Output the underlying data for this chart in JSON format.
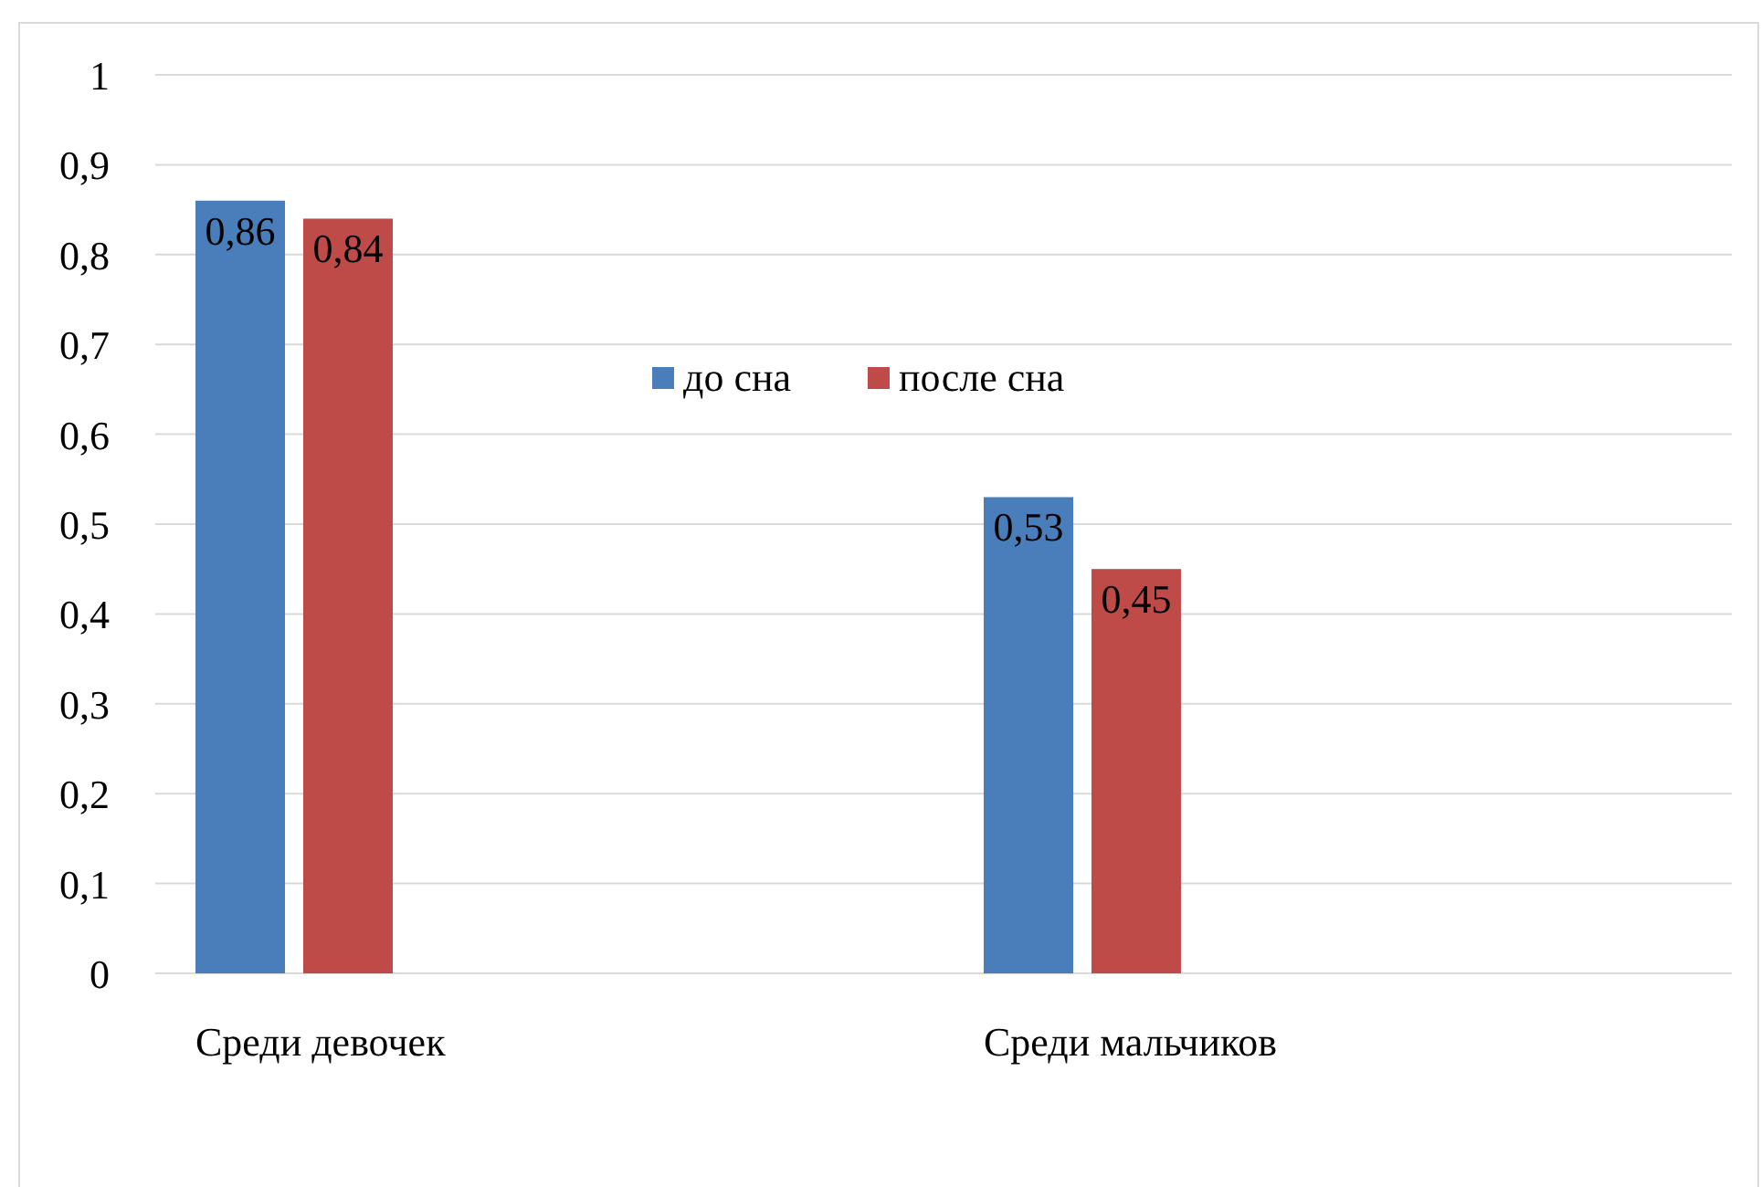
{
  "chart_data": {
    "type": "bar",
    "categories": [
      "Среди девочек",
      "Среди мальчиков"
    ],
    "series": [
      {
        "name": "до сна",
        "color": "#4a7ebb",
        "values": [
          0.86,
          0.53
        ],
        "value_labels": [
          "0,86",
          "0,53"
        ]
      },
      {
        "name": "после сна",
        "color": "#be4b48",
        "values": [
          0.84,
          0.45
        ],
        "value_labels": [
          "0,84",
          "0,45"
        ]
      }
    ],
    "ylim": [
      0,
      1
    ],
    "yticks": [
      0,
      {
        "value": 0.1,
        "label": "0,1"
      },
      {
        "value": 0.2,
        "label": "0,2"
      },
      {
        "value": 0.3,
        "label": "0,3"
      },
      {
        "value": 0.4,
        "label": "0,4"
      },
      {
        "value": 0.5,
        "label": "0,5"
      },
      {
        "value": 0.6,
        "label": "0,6"
      },
      {
        "value": 0.7,
        "label": "0,7"
      },
      {
        "value": 0.8,
        "label": "0,8"
      },
      {
        "value": 0.9,
        "label": "0,9"
      },
      1
    ],
    "grid": "y",
    "legend": "top"
  }
}
